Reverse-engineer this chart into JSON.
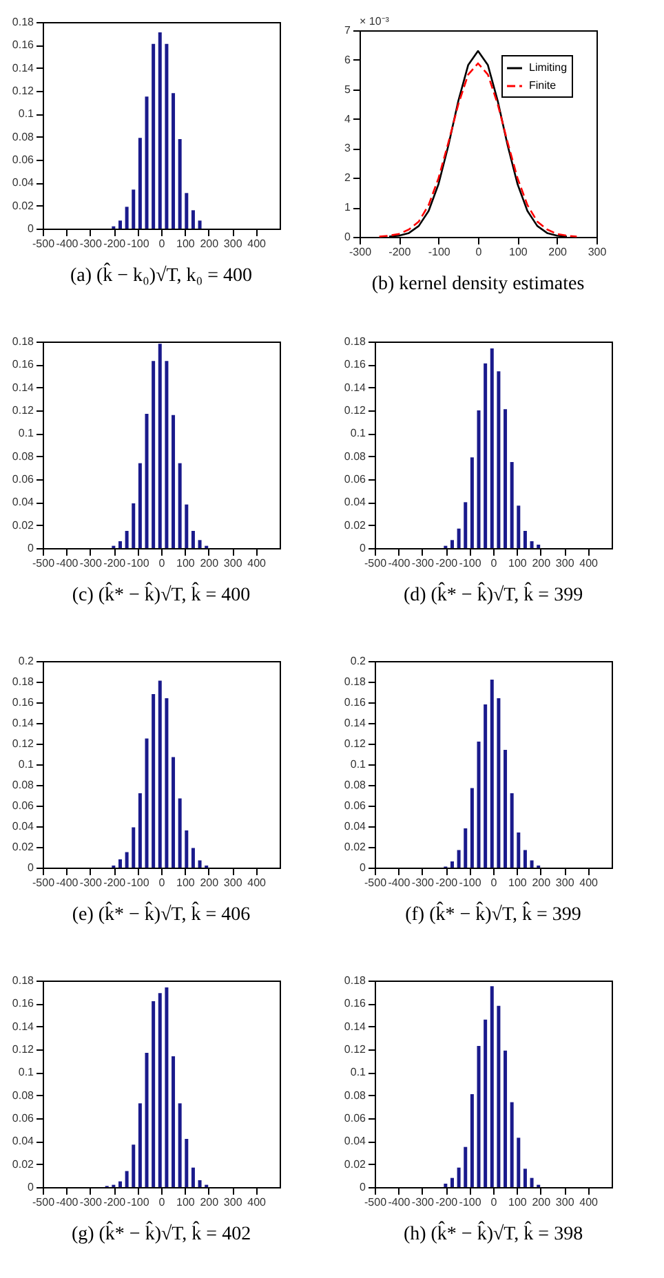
{
  "chart_data": [
    {
      "type": "bar",
      "title": "(a) (k̂ − k₀)√T, k₀ = 400",
      "color": "#1a1a8c",
      "x": [
        -201,
        -173,
        -145,
        -117,
        -89,
        -61,
        -33,
        -5,
        23,
        51,
        79,
        107,
        135,
        163
      ],
      "values": [
        0.002,
        0.007,
        0.019,
        0.034,
        0.079,
        0.115,
        0.161,
        0.171,
        0.161,
        0.118,
        0.078,
        0.031,
        0.016,
        0.007
      ],
      "xlim": [
        -500,
        500
      ],
      "xticks": [
        -500,
        -400,
        -300,
        -200,
        -100,
        0,
        100,
        200,
        300,
        400
      ],
      "ylim": [
        0,
        0.18
      ],
      "yticks": [
        0,
        0.02,
        0.04,
        0.06,
        0.08,
        0.1,
        0.12,
        0.14,
        0.16,
        0.18
      ]
    },
    {
      "type": "line",
      "title": "(b) kernel density estimates",
      "annotations": [
        "× 10⁻³"
      ],
      "legend": "top right",
      "xlim": [
        -300,
        300
      ],
      "xticks": [
        -300,
        -200,
        -100,
        0,
        100,
        200,
        300
      ],
      "ylim": [
        0,
        7
      ],
      "yticks": [
        0,
        1,
        2,
        3,
        4,
        5,
        6,
        7
      ],
      "series": [
        {
          "name": "Limiting",
          "color": "#000000",
          "line_style": "solid",
          "x": [
            -225,
            -200,
            -175,
            -150,
            -125,
            -100,
            -75,
            -50,
            -25,
            0,
            25,
            50,
            75,
            100,
            125,
            150,
            175,
            200,
            225
          ],
          "values": [
            0.01,
            0.04,
            0.13,
            0.37,
            0.88,
            1.79,
            3.1,
            4.6,
            5.82,
            6.3,
            5.82,
            4.6,
            3.1,
            1.79,
            0.88,
            0.37,
            0.13,
            0.04,
            0.01
          ]
        },
        {
          "name": "Finite",
          "color": "#ff0000",
          "line_style": "dashed",
          "x": [
            -250,
            -225,
            -200,
            -175,
            -150,
            -125,
            -100,
            -75,
            -50,
            -25,
            0,
            25,
            50,
            75,
            100,
            125,
            150,
            175,
            200,
            225,
            250
          ],
          "values": [
            0.01,
            0.04,
            0.1,
            0.25,
            0.52,
            1.08,
            1.99,
            3.2,
            4.49,
            5.5,
            5.88,
            5.5,
            4.49,
            3.2,
            1.99,
            1.08,
            0.52,
            0.25,
            0.1,
            0.04,
            0.01
          ]
        }
      ]
    },
    {
      "type": "bar",
      "title": "(c) (k̂* − k̂)√T, k̂ = 400",
      "color": "#1a1a8c",
      "x": [
        -201,
        -173,
        -145,
        -117,
        -89,
        -61,
        -33,
        -5,
        23,
        51,
        79,
        107,
        135,
        163,
        191
      ],
      "values": [
        0.002,
        0.006,
        0.015,
        0.039,
        0.074,
        0.117,
        0.163,
        0.178,
        0.163,
        0.116,
        0.074,
        0.038,
        0.015,
        0.007,
        0.002
      ],
      "xlim": [
        -500,
        500
      ],
      "xticks": [
        -500,
        -400,
        -300,
        -200,
        -100,
        0,
        100,
        200,
        300,
        400
      ],
      "ylim": [
        0,
        0.18
      ],
      "yticks": [
        0,
        0.02,
        0.04,
        0.06,
        0.08,
        0.1,
        0.12,
        0.14,
        0.16,
        0.18
      ]
    },
    {
      "type": "bar",
      "title": "(d) (k̂* − k̂)√T, k̂ = 399",
      "color": "#1a1a8c",
      "x": [
        -201,
        -173,
        -145,
        -117,
        -89,
        -61,
        -33,
        -5,
        23,
        51,
        79,
        107,
        135,
        163,
        191
      ],
      "values": [
        0.002,
        0.007,
        0.017,
        0.04,
        0.079,
        0.12,
        0.161,
        0.174,
        0.154,
        0.121,
        0.075,
        0.037,
        0.015,
        0.006,
        0.003
      ],
      "xlim": [
        -500,
        500
      ],
      "xticks": [
        -500,
        -400,
        -300,
        -200,
        -100,
        0,
        100,
        200,
        300,
        400
      ],
      "ylim": [
        0,
        0.18
      ],
      "yticks": [
        0,
        0.02,
        0.04,
        0.06,
        0.08,
        0.1,
        0.12,
        0.14,
        0.16,
        0.18
      ]
    },
    {
      "type": "bar",
      "title": "(e) (k̂* − k̂)√T, k̂ = 406",
      "color": "#1a1a8c",
      "x": [
        -201,
        -173,
        -145,
        -117,
        -89,
        -61,
        -33,
        -5,
        23,
        51,
        79,
        107,
        135,
        163,
        191
      ],
      "values": [
        0.002,
        0.008,
        0.015,
        0.039,
        0.072,
        0.125,
        0.168,
        0.181,
        0.164,
        0.107,
        0.067,
        0.036,
        0.019,
        0.007,
        0.002
      ],
      "xlim": [
        -500,
        500
      ],
      "xticks": [
        -500,
        -400,
        -300,
        -200,
        -100,
        0,
        100,
        200,
        300,
        400
      ],
      "ylim": [
        0,
        0.2
      ],
      "yticks": [
        0,
        0.02,
        0.04,
        0.06,
        0.08,
        0.1,
        0.12,
        0.14,
        0.16,
        0.18,
        0.2
      ]
    },
    {
      "type": "bar",
      "title": "(f) (k̂* − k̂)√T, k̂ = 399",
      "color": "#1a1a8c",
      "x": [
        -201,
        -173,
        -145,
        -117,
        -89,
        -61,
        -33,
        -5,
        23,
        51,
        79,
        107,
        135,
        163,
        191
      ],
      "values": [
        0.001,
        0.006,
        0.017,
        0.038,
        0.077,
        0.122,
        0.158,
        0.182,
        0.164,
        0.114,
        0.072,
        0.034,
        0.017,
        0.007,
        0.002
      ],
      "xlim": [
        -500,
        500
      ],
      "xticks": [
        -500,
        -400,
        -300,
        -200,
        -100,
        0,
        100,
        200,
        300,
        400
      ],
      "ylim": [
        0,
        0.2
      ],
      "yticks": [
        0,
        0.02,
        0.04,
        0.06,
        0.08,
        0.1,
        0.12,
        0.14,
        0.16,
        0.18,
        0.2
      ]
    },
    {
      "type": "bar",
      "title": "(g) (k̂* − k̂)√T, k̂ = 402",
      "color": "#1a1a8c",
      "x": [
        -229,
        -201,
        -173,
        -145,
        -117,
        -89,
        -61,
        -33,
        -5,
        23,
        51,
        79,
        107,
        135,
        163,
        191
      ],
      "values": [
        0.001,
        0.002,
        0.005,
        0.014,
        0.037,
        0.073,
        0.117,
        0.162,
        0.169,
        0.174,
        0.114,
        0.073,
        0.042,
        0.017,
        0.006,
        0.002
      ],
      "xlim": [
        -500,
        500
      ],
      "xticks": [
        -500,
        -400,
        -300,
        -200,
        -100,
        0,
        100,
        200,
        300,
        400
      ],
      "ylim": [
        0,
        0.18
      ],
      "yticks": [
        0,
        0.02,
        0.04,
        0.06,
        0.08,
        0.1,
        0.12,
        0.14,
        0.16,
        0.18
      ]
    },
    {
      "type": "bar",
      "title": "(h) (k̂* − k̂)√T, k̂ = 398",
      "color": "#1a1a8c",
      "x": [
        -201,
        -173,
        -145,
        -117,
        -89,
        -61,
        -33,
        -5,
        23,
        51,
        79,
        107,
        135,
        163,
        191
      ],
      "values": [
        0.003,
        0.008,
        0.017,
        0.035,
        0.081,
        0.123,
        0.146,
        0.175,
        0.158,
        0.119,
        0.074,
        0.043,
        0.016,
        0.008,
        0.002
      ],
      "xlim": [
        -500,
        500
      ],
      "xticks": [
        -500,
        -400,
        -300,
        -200,
        -100,
        0,
        100,
        200,
        300,
        400
      ],
      "ylim": [
        0,
        0.18
      ],
      "yticks": [
        0,
        0.02,
        0.04,
        0.06,
        0.08,
        0.1,
        0.12,
        0.14,
        0.16,
        0.18
      ]
    }
  ]
}
